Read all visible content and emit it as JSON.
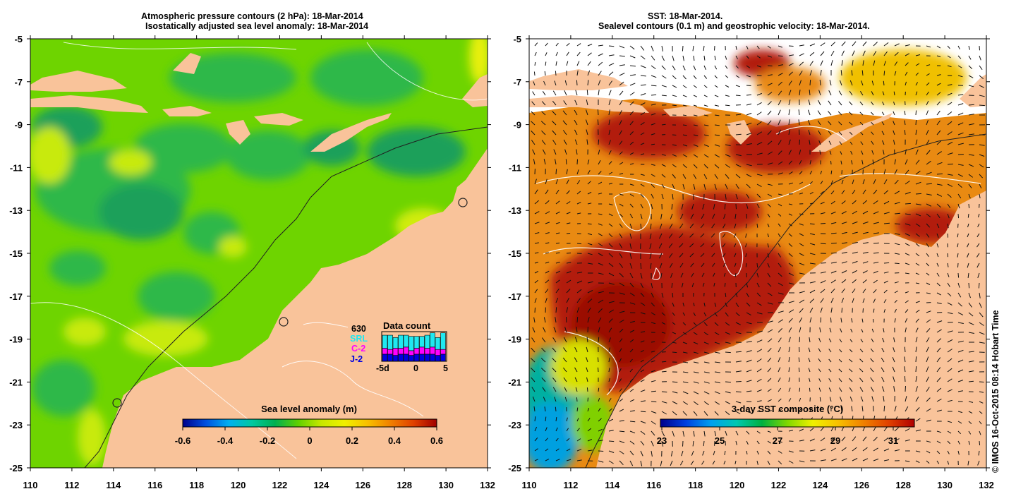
{
  "left_panel": {
    "title_line1": "Atmospheric pressure contours (2 hPa): 18-Mar-2014",
    "title_line2": "Isostatically adjusted sea level anomaly: 18-Mar-2014",
    "colorbar": {
      "label": "Sea level anomaly (m)",
      "ticks": [
        "-0.6",
        "-0.4",
        "-0.2",
        "0",
        "0.2",
        "0.4",
        "0.6"
      ],
      "stops": [
        "#00008b",
        "#0050e0",
        "#00b0f0",
        "#00c8a0",
        "#00b050",
        "#60d000",
        "#c8e800",
        "#f0f000",
        "#f8c000",
        "#f08000",
        "#e04000",
        "#a00000"
      ]
    },
    "data_count": {
      "title": "Data count",
      "satellites": [
        {
          "name": "630",
          "color": "#000000"
        },
        {
          "name": "SRL",
          "color": "#20e8f0"
        },
        {
          "name": "C-2",
          "color": "#ff00ff"
        },
        {
          "name": "J-2",
          "color": "#0000e0"
        }
      ],
      "x_ticks": [
        "-5d",
        "0",
        "5"
      ],
      "bars": [
        {
          "srl": 0.55,
          "c2": 0.25,
          "j2": 0.3
        },
        {
          "srl": 0.6,
          "c2": 0.2,
          "j2": 0.3
        },
        {
          "srl": 0.45,
          "c2": 0.3,
          "j2": 0.25
        },
        {
          "srl": 0.55,
          "c2": 0.25,
          "j2": 0.3
        },
        {
          "srl": 0.5,
          "c2": 0.3,
          "j2": 0.3
        },
        {
          "srl": 0.6,
          "c2": 0.2,
          "j2": 0.25
        },
        {
          "srl": 0.5,
          "c2": 0.25,
          "j2": 0.3
        },
        {
          "srl": 0.45,
          "c2": 0.3,
          "j2": 0.3
        },
        {
          "srl": 0.55,
          "c2": 0.25,
          "j2": 0.3
        },
        {
          "srl": 0.6,
          "c2": 0.3,
          "j2": 0.3
        },
        {
          "srl": 0.5,
          "c2": 0.25,
          "j2": 0.25
        },
        {
          "srl": 0.7,
          "c2": 0.2,
          "j2": 0.3
        }
      ]
    }
  },
  "right_panel": {
    "title_line1": "SST: 18-Mar-2014.",
    "title_line2": "Sealevel contours (0.1 m) and geostrophic velocity: 18-Mar-2014.",
    "colorbar": {
      "label": "3-day SST composite (°C)",
      "ticks": [
        "23",
        "25",
        "27",
        "29",
        "31"
      ],
      "stops": [
        "#00008b",
        "#0040e0",
        "#00a0f0",
        "#00c8b0",
        "#00b040",
        "#80d800",
        "#f0f000",
        "#f8c000",
        "#f08000",
        "#e04000",
        "#b00000"
      ]
    }
  },
  "axes": {
    "x_ticks": [
      "110",
      "112",
      "114",
      "116",
      "118",
      "120",
      "122",
      "124",
      "126",
      "128",
      "130",
      "132"
    ],
    "y_ticks": [
      "-5",
      "-7",
      "-9",
      "-11",
      "-13",
      "-15",
      "-17",
      "-19",
      "-21",
      "-23",
      "-25"
    ]
  },
  "colors": {
    "land": "#f9c39a",
    "sla_bg": "#6ed400",
    "sla_green": "#2fb84a",
    "sla_dark": "#1aa05a",
    "sla_yellow": "#d0ec10",
    "sst_orange": "#e98a12",
    "sst_red": "#b21a08",
    "sst_darkred": "#9a1000"
  },
  "credit": "© IMOS 16-Oct-2015 08:14 Hobart Time"
}
